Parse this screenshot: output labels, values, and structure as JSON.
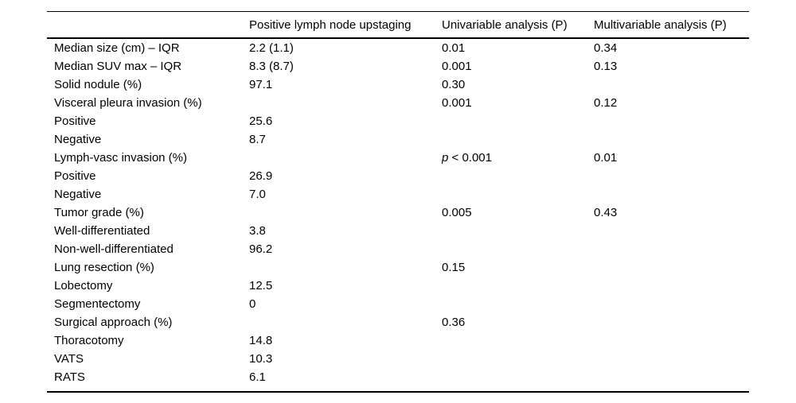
{
  "page": {
    "background": "#ffffff",
    "text_color": "#000000",
    "rule_color": "#000000"
  },
  "table": {
    "columns": [
      "",
      "Positive lymph node upstaging",
      "Univariable analysis (P)",
      "Multivariable analysis (P)"
    ],
    "rows": [
      {
        "label": "Median size (cm) – IQR",
        "upstaging": "2.2 (1.1)",
        "univariable": "0.01",
        "multivariable": "0.34"
      },
      {
        "label": "Median SUV max – IQR",
        "upstaging": "8.3 (8.7)",
        "univariable": "0.001",
        "multivariable": "0.13"
      },
      {
        "label": "Solid nodule (%)",
        "upstaging": "97.1",
        "univariable": "0.30",
        "multivariable": ""
      },
      {
        "label": "Visceral pleura invasion (%)",
        "upstaging": "",
        "univariable": "0.001",
        "multivariable": "0.12"
      },
      {
        "label": "Positive",
        "upstaging": "25.6",
        "univariable": "",
        "multivariable": ""
      },
      {
        "label": "Negative",
        "upstaging": "8.7",
        "univariable": "",
        "multivariable": ""
      },
      {
        "label": "Lymph-vasc invasion (%)",
        "upstaging": "",
        "univariable": "p < 0.001",
        "univariable_italic_p": true,
        "multivariable": "0.01"
      },
      {
        "label": "Positive",
        "upstaging": "26.9",
        "univariable": "",
        "multivariable": ""
      },
      {
        "label": "Negative",
        "upstaging": "7.0",
        "univariable": "",
        "multivariable": ""
      },
      {
        "label": "Tumor grade (%)",
        "upstaging": "",
        "univariable": "0.005",
        "multivariable": "0.43"
      },
      {
        "label": "Well-differentiated",
        "upstaging": "3.8",
        "univariable": "",
        "multivariable": ""
      },
      {
        "label": "Non-well-differentiated",
        "upstaging": "96.2",
        "univariable": "",
        "multivariable": ""
      },
      {
        "label": "Lung resection (%)",
        "upstaging": "",
        "univariable": "0.15",
        "multivariable": ""
      },
      {
        "label": "Lobectomy",
        "upstaging": "12.5",
        "univariable": "",
        "multivariable": ""
      },
      {
        "label": "Segmentectomy",
        "upstaging": "0",
        "univariable": "",
        "multivariable": ""
      },
      {
        "label": "Surgical approach (%)",
        "upstaging": "",
        "univariable": "0.36",
        "multivariable": ""
      },
      {
        "label": "Thoracotomy",
        "upstaging": "14.8",
        "univariable": "",
        "multivariable": ""
      },
      {
        "label": "VATS",
        "upstaging": "10.3",
        "univariable": "",
        "multivariable": ""
      },
      {
        "label": "RATS",
        "upstaging": "6.1",
        "univariable": "",
        "multivariable": ""
      }
    ]
  }
}
